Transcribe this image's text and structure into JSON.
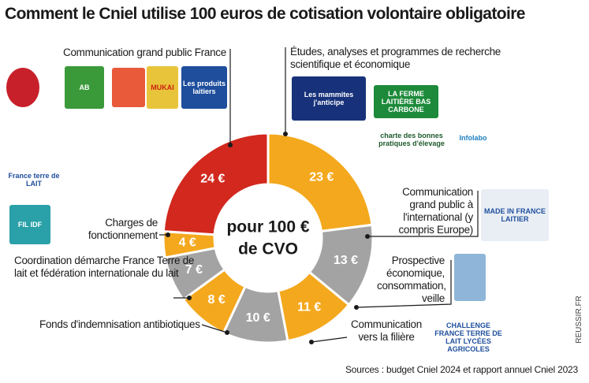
{
  "chart_data": {
    "type": "donut",
    "title": "Comment le Cniel utilise 100 euros de cotisation volontaire obligatoire",
    "center_label": [
      "pour 100 €",
      "de CVO"
    ],
    "categories": [
      "Études, analyses et programmes de recherche scientifique et économique",
      "Communication grand public à l'international (y compris Europe)",
      "Prospective économique, consommation, veille",
      "Communication vers la filière",
      "Fonds d'indemnisation antibiotiques",
      "Coordination démarche France Terre de lait et fédération internationale du lait",
      "Charges de fonctionnement",
      "Communication grand public France"
    ],
    "values": [
      23,
      13,
      11,
      10,
      8,
      7,
      4,
      24
    ],
    "value_labels": [
      "23 €",
      "13 €",
      "11 €",
      "10 €",
      "8 €",
      "7 €",
      "4 €",
      "24 €"
    ],
    "colors": [
      "#f4a81d",
      "#a3a3a3",
      "#f4a81d",
      "#a3a3a3",
      "#f4a81d",
      "#a3a3a3",
      "#f4a81d",
      "#d2281e"
    ],
    "source": "Sources : budget Cniel 2024 et rapport annuel Cniel 2023",
    "credit": "REUSSIR.FR"
  },
  "logos": [
    "AB",
    "MUKAI",
    "Les produits laitiers",
    "Les mammites j'anticipe",
    "LA FERME LAITIÈRE BAS CARBONE",
    "charte des bonnes pratiques d'élevage",
    "Infolabo",
    "France terre de LAIT",
    "FIL IDF",
    "MADE IN FRANCE LAITIER",
    "CHALLENGE FRANCE TERRE DE LAIT LYCÉES AGRICOLES"
  ]
}
